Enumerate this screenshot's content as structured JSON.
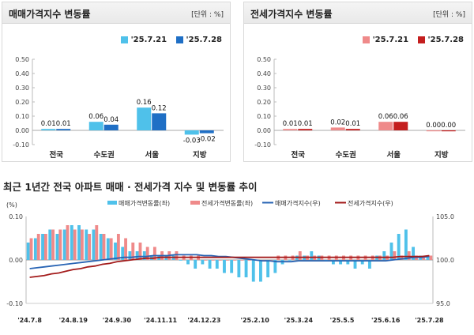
{
  "colors": {
    "sale_bar_1": "#4fc1ea",
    "sale_bar_2": "#1f6fc5",
    "jeonse_bar_1": "#ef8a8a",
    "jeonse_bar_2": "#c41e1e",
    "sale_index_line": "#2864b4",
    "jeonse_index_line": "#a31b1b"
  },
  "panels": {
    "sale": {
      "title": "매매가격지수 변동률",
      "unit": "[단위 : %]",
      "legend": [
        "'25.7.21",
        "'25.7.28"
      ]
    },
    "jeonse": {
      "title": "전세가격지수 변동률",
      "unit": "[단위 : %]",
      "legend": [
        "'25.7.21",
        "'25.7.28"
      ]
    }
  },
  "trend": {
    "title": "최근 1년간 전국 아파트 매매 · 전세가격 지수 및 변동률 추이",
    "legend": [
      "매매가격변동률(좌)",
      "전세가격변동률(좌)",
      "매매가격지수(우)",
      "전세가격지수(우)"
    ],
    "left_axis_label": "(%)"
  },
  "chart_data": [
    {
      "type": "bar",
      "title": "매매가격지수 변동률",
      "categories": [
        "전국",
        "수도권",
        "서울",
        "지방"
      ],
      "series": [
        {
          "name": "'25.7.21",
          "values": [
            0.01,
            0.06,
            0.16,
            -0.03
          ],
          "labels": [
            "0.01",
            "0.06",
            "0.16",
            "-0.03"
          ]
        },
        {
          "name": "'25.7.28",
          "values": [
            0.01,
            0.04,
            0.12,
            -0.02
          ],
          "labels": [
            "0.01",
            "0.04",
            "0.12",
            "-0.02"
          ]
        }
      ],
      "ylim": [
        -0.1,
        0.5
      ],
      "yticks": [
        "-0.10",
        "0.00",
        "0.10",
        "0.20",
        "0.30",
        "0.40",
        "0.50"
      ],
      "legend": "top-right"
    },
    {
      "type": "bar",
      "title": "전세가격지수 변동률",
      "categories": [
        "전국",
        "수도권",
        "서울",
        "지방"
      ],
      "series": [
        {
          "name": "'25.7.21",
          "values": [
            0.01,
            0.02,
            0.06,
            0.0
          ],
          "labels": [
            "0.01",
            "0.02",
            "0.06",
            "0.00"
          ]
        },
        {
          "name": "'25.7.28",
          "values": [
            0.01,
            0.01,
            0.06,
            0.0
          ],
          "labels": [
            "0.01",
            "0.01",
            "0.06",
            "0.00"
          ]
        }
      ],
      "ylim": [
        -0.1,
        0.5
      ],
      "yticks": [
        "-0.10",
        "0.00",
        "0.10",
        "0.20",
        "0.30",
        "0.40",
        "0.50"
      ],
      "legend": "top-right"
    },
    {
      "type": "bar",
      "title": "최근 1년간 전국 아파트 매매 · 전세가격 지수 및 변동률 추이",
      "x_tick_labels": [
        "'24.7.8",
        "'24.8.19",
        "'24.9.30",
        "'24.11.11",
        "'24.12.23",
        "'25.2.10",
        "'25.3.24",
        "'25.5.5",
        "'25.6.16",
        "'25.7.28"
      ],
      "weeks": 56,
      "series": [
        {
          "name": "매매가격변동률(좌)",
          "axis": "left",
          "type": "bar",
          "values": [
            0.04,
            0.05,
            0.06,
            0.07,
            0.06,
            0.07,
            0.08,
            0.08,
            0.07,
            0.07,
            0.06,
            0.05,
            0.04,
            0.03,
            0.02,
            0.02,
            0.02,
            0.01,
            0.01,
            0.01,
            0.01,
            0.0,
            -0.01,
            -0.02,
            -0.01,
            -0.02,
            -0.02,
            -0.03,
            -0.03,
            -0.04,
            -0.04,
            -0.05,
            -0.05,
            -0.04,
            -0.03,
            -0.01,
            0.0,
            0.01,
            0.01,
            0.02,
            0.01,
            0.0,
            -0.01,
            -0.01,
            -0.01,
            -0.02,
            -0.01,
            -0.02,
            0.01,
            0.02,
            0.04,
            0.06,
            0.07,
            0.03,
            0.01,
            0.01
          ]
        },
        {
          "name": "전세가격변동률(좌)",
          "axis": "left",
          "type": "bar",
          "values": [
            0.05,
            0.06,
            0.06,
            0.07,
            0.07,
            0.08,
            0.07,
            0.07,
            0.06,
            0.08,
            0.06,
            0.05,
            0.06,
            0.05,
            0.04,
            0.04,
            0.03,
            0.03,
            0.02,
            0.02,
            0.02,
            0.01,
            0.01,
            0.01,
            0.0,
            0.0,
            0.0,
            0.0,
            0.0,
            0.0,
            0.0,
            0.0,
            0.0,
            0.0,
            0.01,
            0.01,
            0.01,
            0.02,
            0.01,
            0.01,
            0.01,
            0.01,
            0.01,
            0.01,
            0.01,
            0.01,
            0.01,
            0.01,
            0.01,
            0.01,
            0.02,
            0.01,
            0.02,
            0.01,
            0.01,
            0.01
          ]
        },
        {
          "name": "매매가격지수(우)",
          "axis": "right",
          "type": "line",
          "values": [
            99.0,
            99.1,
            99.2,
            99.3,
            99.4,
            99.5,
            99.6,
            99.7,
            99.8,
            99.9,
            100.0,
            100.1,
            100.2,
            100.3,
            100.3,
            100.4,
            100.4,
            100.5,
            100.5,
            100.5,
            100.6,
            100.6,
            100.6,
            100.6,
            100.5,
            100.5,
            100.4,
            100.4,
            100.3,
            100.2,
            100.1,
            100.0,
            99.9,
            99.9,
            99.8,
            99.8,
            99.8,
            99.9,
            99.9,
            99.9,
            99.9,
            99.9,
            99.9,
            99.9,
            99.9,
            99.9,
            99.9,
            99.9,
            99.9,
            99.9,
            100.0,
            100.1,
            100.2,
            100.3,
            100.3,
            100.4
          ]
        },
        {
          "name": "전세가격지수(우)",
          "axis": "right",
          "type": "line",
          "values": [
            98.0,
            98.1,
            98.2,
            98.4,
            98.5,
            98.7,
            98.9,
            99.0,
            99.2,
            99.3,
            99.5,
            99.6,
            99.8,
            99.9,
            100.0,
            100.1,
            100.2,
            100.2,
            100.3,
            100.3,
            100.3,
            100.3,
            100.3,
            100.3,
            100.3,
            100.3,
            100.3,
            100.3,
            100.3,
            100.3,
            100.3,
            100.3,
            100.3,
            100.3,
            100.3,
            100.3,
            100.3,
            100.3,
            100.3,
            100.3,
            100.3,
            100.3,
            100.3,
            100.3,
            100.3,
            100.3,
            100.3,
            100.3,
            100.3,
            100.3,
            100.3,
            100.4,
            100.4,
            100.4,
            100.4,
            100.5
          ]
        }
      ],
      "left_ylim": [
        -0.1,
        0.1
      ],
      "left_yticks": [
        "-0.10",
        "0.00",
        "0.10"
      ],
      "right_ylim": [
        95.0,
        105.0
      ],
      "right_yticks": [
        "95.0",
        "100.0",
        "105.0"
      ],
      "legend": "top"
    }
  ]
}
